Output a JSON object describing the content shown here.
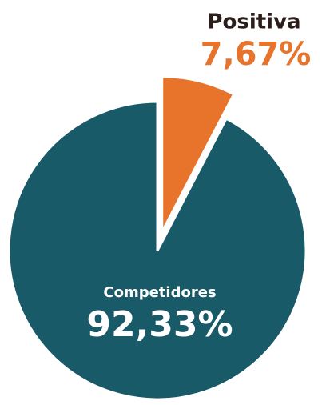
{
  "chart_data": {
    "type": "pie",
    "categories": [
      "Competidores",
      "Positiva"
    ],
    "values": [
      92.33,
      7.67
    ],
    "value_labels": [
      "92,33%",
      "7,67%"
    ],
    "colors": [
      "#185a68",
      "#e8732a"
    ],
    "exploded": [
      false,
      true
    ]
  }
}
